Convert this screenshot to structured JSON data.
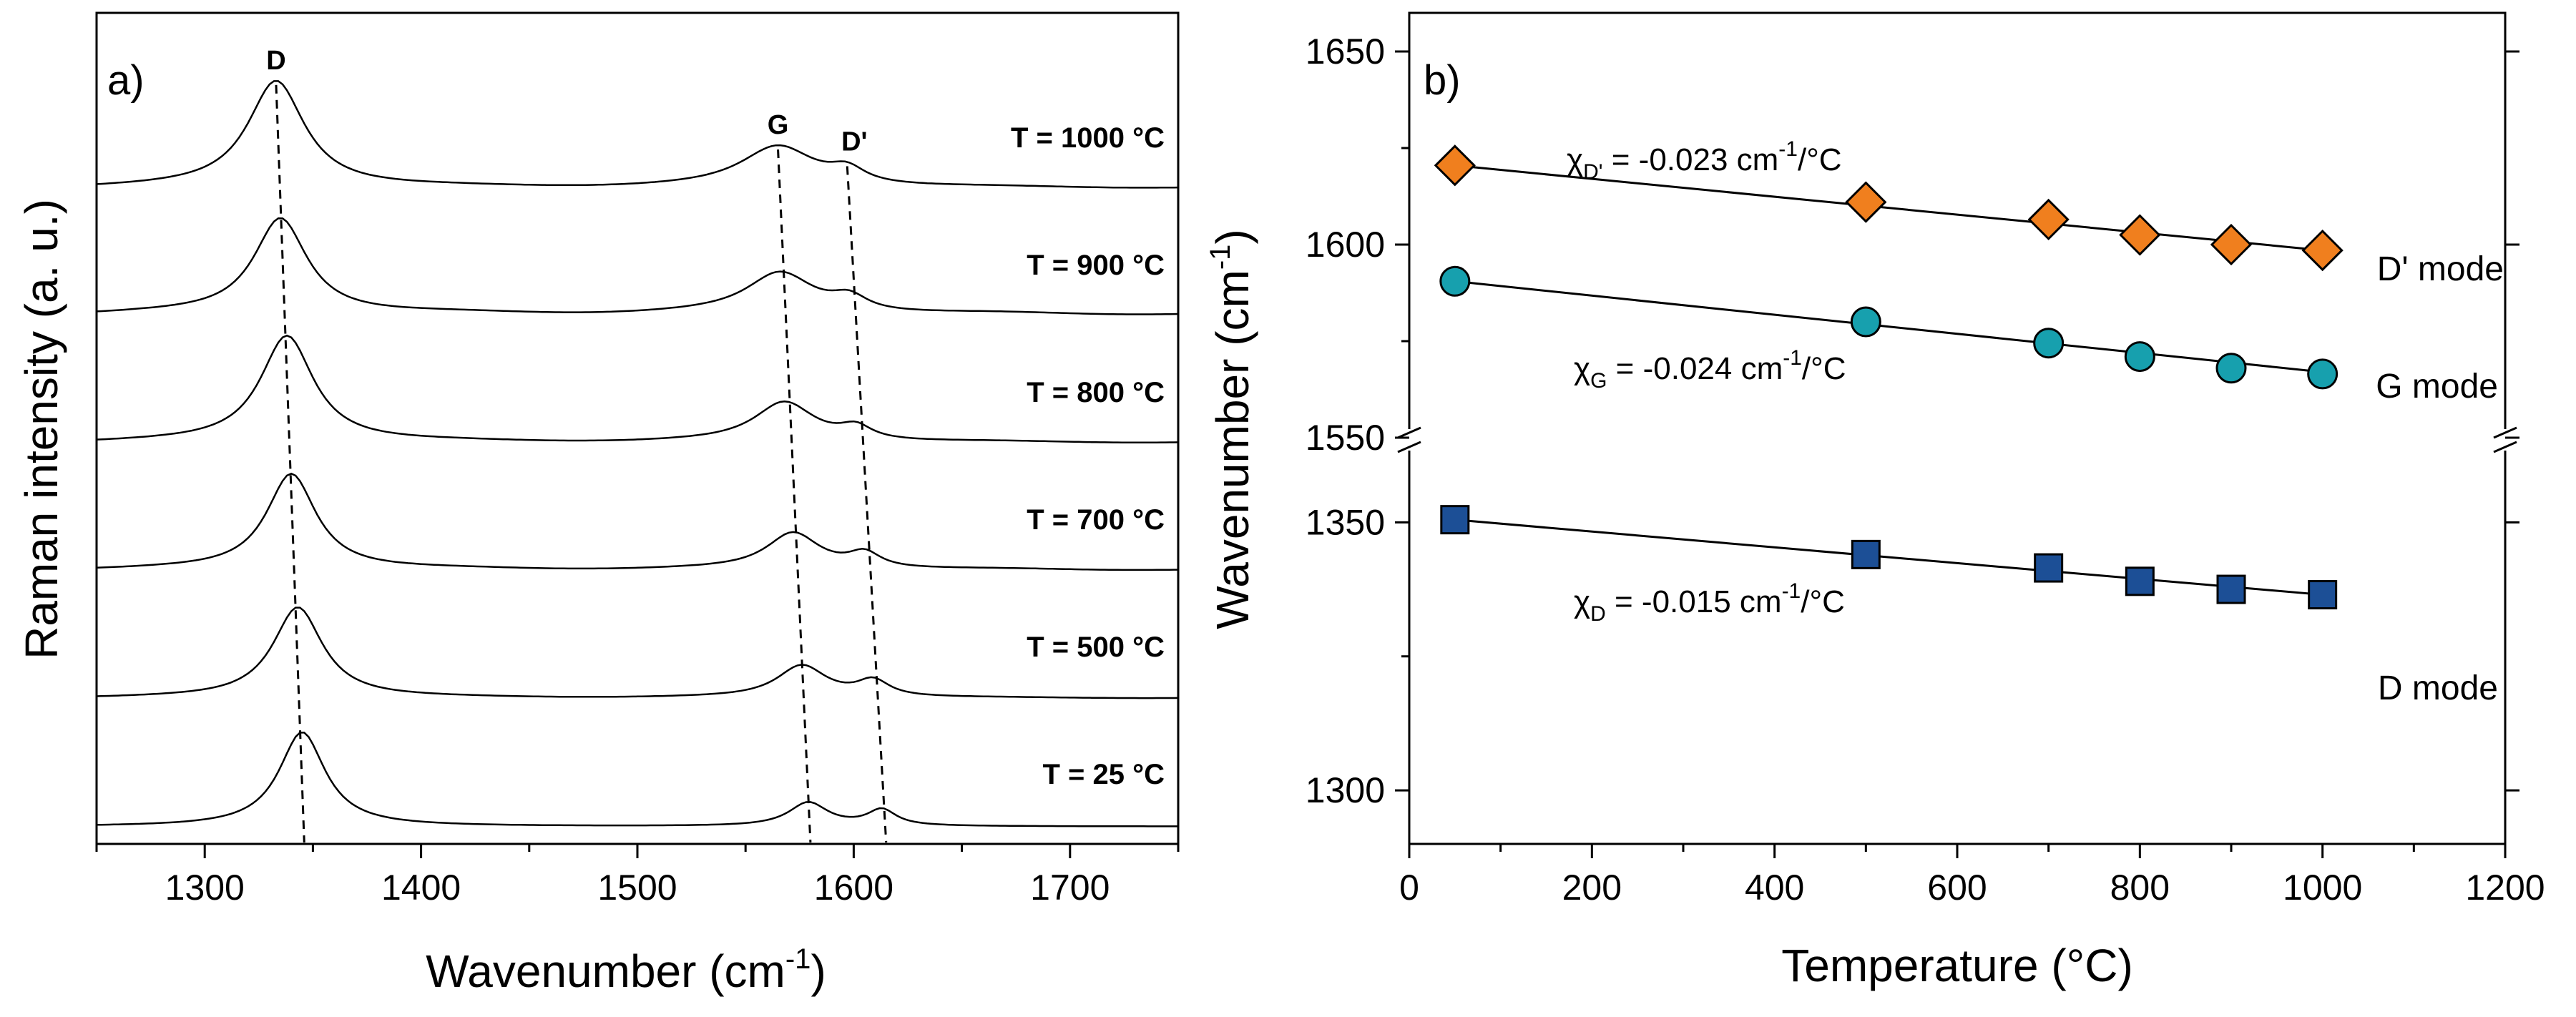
{
  "chart_data": [
    {
      "panel": "a)",
      "type": "line",
      "xlabel": "Wavenumber (cm",
      "xlabel_sup": "-1",
      "xlabel_close": ")",
      "ylabel": "Raman intensity (a. u.)",
      "xlim": [
        1250,
        1750
      ],
      "xticks": [
        1300,
        1400,
        1500,
        1600,
        1700
      ],
      "peak_labels": [
        "D",
        "G",
        "D'"
      ],
      "series": [
        {
          "name": "T = 1000 °C",
          "offset": 5,
          "d": [
            1333,
            1.0,
            32
          ],
          "g": [
            1565,
            0.38,
            42
          ],
          "dp": [
            1597,
            0.13,
            20
          ],
          "baseline": 0.02
        },
        {
          "name": "T = 900 °C",
          "offset": 4,
          "d": [
            1335,
            0.9,
            30
          ],
          "g": [
            1566,
            0.38,
            38
          ],
          "dp": [
            1598,
            0.13,
            20
          ],
          "baseline": 0.03
        },
        {
          "name": "T = 800 °C",
          "offset": 3,
          "d": [
            1338,
            1.0,
            30
          ],
          "g": [
            1568,
            0.37,
            34
          ],
          "dp": [
            1601,
            0.12,
            18
          ],
          "baseline": 0.02
        },
        {
          "name": "T = 700 °C",
          "offset": 2,
          "d": [
            1340,
            0.9,
            28
          ],
          "g": [
            1572,
            0.34,
            30
          ],
          "dp": [
            1605,
            0.14,
            18
          ],
          "baseline": 0.02
        },
        {
          "name": "T = 500 °C",
          "offset": 1,
          "d": [
            1343,
            0.85,
            28
          ],
          "g": [
            1576,
            0.3,
            28
          ],
          "dp": [
            1609,
            0.15,
            18
          ],
          "baseline": 0.01
        },
        {
          "name": "T = 25 °C",
          "offset": 0,
          "d": [
            1345,
            0.88,
            26
          ],
          "g": [
            1579,
            0.22,
            22
          ],
          "dp": [
            1613,
            0.15,
            16
          ],
          "baseline": 0.0
        }
      ],
      "guide_lines": [
        {
          "name": "D",
          "x_top": 1333,
          "x_bottom": 1346
        },
        {
          "name": "G",
          "x_top": 1565,
          "x_bottom": 1580
        },
        {
          "name": "D'",
          "x_top": 1597,
          "x_bottom": 1615
        }
      ]
    },
    {
      "panel": "b)",
      "type": "scatter",
      "xlabel": "Temperature (°C)",
      "ylabel": "Wavenumber (cm",
      "ylabel_sup": "-1",
      "ylabel_close": ")",
      "xlim": [
        0,
        1200
      ],
      "xticks": [
        0,
        200,
        400,
        600,
        800,
        1000,
        1200
      ],
      "broken_axis": {
        "upper": {
          "ylim": [
            1550,
            1660
          ],
          "yticks": [
            1550,
            1600,
            1650
          ]
        },
        "lower": {
          "ylim": [
            1290,
            1365
          ],
          "yticks": [
            1300,
            1350
          ]
        }
      },
      "series": [
        {
          "name": "D' mode",
          "marker": "diamond",
          "color": "#F07F1E",
          "x": [
            50,
            500,
            700,
            800,
            900,
            1000
          ],
          "y": [
            1620.5,
            1611,
            1606.5,
            1602.5,
            1600,
            1598.5
          ],
          "fit": [
            1620.5,
            1598.5
          ],
          "coef_symbol": "χ",
          "coef_sub": "D'",
          "coef_text": " = -0.023 cm",
          "coef_sup": "-1",
          "coef_unit": "/°C"
        },
        {
          "name": "G mode",
          "marker": "circle",
          "color": "#17A0AE",
          "x": [
            50,
            500,
            700,
            800,
            900,
            1000
          ],
          "y": [
            1590.5,
            1580,
            1574.5,
            1571,
            1568,
            1566.5
          ],
          "fit": [
            1590.5,
            1567
          ],
          "coef_symbol": "χ",
          "coef_sub": "G",
          "coef_text": " = -0.024 cm",
          "coef_sup": "-1",
          "coef_unit": "/°C"
        },
        {
          "name": "D mode",
          "marker": "square",
          "color": "#1C4F96",
          "x": [
            50,
            500,
            700,
            800,
            900,
            1000
          ],
          "y": [
            1350.5,
            1344,
            1341.5,
            1339,
            1337.5,
            1336.5
          ],
          "fit": [
            1350.5,
            1336.5
          ],
          "coef_symbol": "χ",
          "coef_sub": "D",
          "coef_text": " = -0.015 cm",
          "coef_sup": "-1",
          "coef_unit": "/°C"
        }
      ]
    }
  ]
}
